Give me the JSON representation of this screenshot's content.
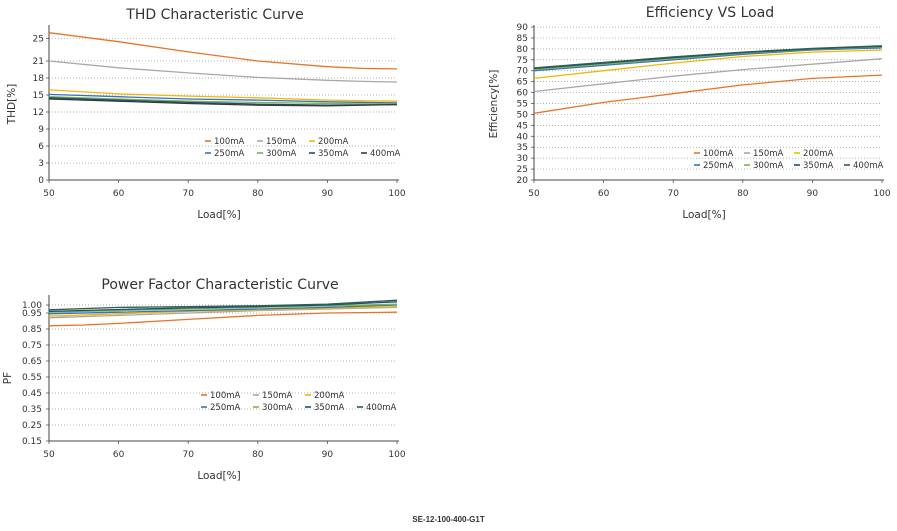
{
  "chart_data": [
    {
      "type": "line",
      "title": "THD Characteristic Curve",
      "xlabel": "Load[%]",
      "ylabel": "THD[%]",
      "xlim": [
        50,
        100
      ],
      "ylim": [
        0,
        27
      ],
      "x_ticks": [
        50,
        60,
        70,
        80,
        90,
        100
      ],
      "y_ticks": [
        0,
        3,
        6,
        9,
        12,
        15,
        18,
        21,
        25
      ],
      "grid": "dotted horizontal",
      "legend_position": "bottom-right",
      "series": [
        {
          "name": "100mA",
          "color": "#e8742a",
          "x": [
            50,
            60,
            70,
            80,
            90,
            95,
            100
          ],
          "y": [
            26,
            24.4,
            22.6,
            21.0,
            20.0,
            19.7,
            19.6
          ]
        },
        {
          "name": "150mA",
          "color": "#a8a8a8",
          "x": [
            50,
            60,
            70,
            80,
            90,
            95,
            100
          ],
          "y": [
            21.0,
            19.8,
            18.9,
            18.1,
            17.6,
            17.4,
            17.3
          ]
        },
        {
          "name": "200mA",
          "color": "#f2b705",
          "x": [
            50,
            60,
            70,
            80,
            90,
            100
          ],
          "y": [
            15.9,
            15.2,
            14.8,
            14.5,
            14.1,
            13.9
          ]
        },
        {
          "name": "250mA",
          "color": "#3a6fc4",
          "x": [
            50,
            60,
            70,
            80,
            90,
            100
          ],
          "y": [
            15.1,
            14.7,
            14.3,
            14.1,
            13.8,
            13.6
          ]
        },
        {
          "name": "300mA",
          "color": "#7ab648",
          "x": [
            50,
            60,
            70,
            80,
            90,
            100
          ],
          "y": [
            14.7,
            14.3,
            13.9,
            13.7,
            13.5,
            13.4
          ]
        },
        {
          "name": "350mA",
          "color": "#1f4e79",
          "x": [
            50,
            60,
            70,
            80,
            90,
            100
          ],
          "y": [
            14.5,
            14.1,
            13.7,
            13.4,
            13.2,
            13.3
          ]
        },
        {
          "name": "400mA",
          "color": "#3a3a3a",
          "x": [
            50,
            60,
            70,
            80,
            90,
            100
          ],
          "y": [
            14.3,
            13.9,
            13.5,
            13.2,
            13.1,
            13.3
          ]
        }
      ]
    },
    {
      "type": "line",
      "title": "Efficiency VS Load",
      "xlabel": "Load[%]",
      "ylabel": "Efficiency[%]",
      "xlim": [
        50,
        100
      ],
      "ylim": [
        20,
        90
      ],
      "x_ticks": [
        50,
        60,
        70,
        80,
        90,
        100
      ],
      "y_ticks": [
        20,
        25,
        30,
        35,
        40,
        45,
        50,
        55,
        60,
        65,
        70,
        75,
        80,
        85,
        90
      ],
      "grid": "dotted horizontal",
      "legend_position": "bottom-right",
      "series": [
        {
          "name": "100mA",
          "color": "#e8742a",
          "x": [
            50,
            60,
            70,
            80,
            90,
            100
          ],
          "y": [
            50.5,
            55.5,
            59.5,
            63.5,
            66.5,
            68.0
          ]
        },
        {
          "name": "150mA",
          "color": "#a8a8a8",
          "x": [
            50,
            60,
            70,
            80,
            90,
            100
          ],
          "y": [
            60.5,
            64.0,
            67.5,
            70.5,
            73.0,
            75.5
          ]
        },
        {
          "name": "200mA",
          "color": "#f2b705",
          "x": [
            50,
            60,
            70,
            80,
            90,
            100
          ],
          "y": [
            66.5,
            70.0,
            73.5,
            76.5,
            78.5,
            79.5
          ]
        },
        {
          "name": "250mA",
          "color": "#3a6fc4",
          "x": [
            50,
            60,
            70,
            80,
            90,
            100
          ],
          "y": [
            70.0,
            72.5,
            75.0,
            77.5,
            79.5,
            80.5
          ]
        },
        {
          "name": "300mA",
          "color": "#7ab648",
          "x": [
            50,
            60,
            70,
            80,
            90,
            100
          ],
          "y": [
            70.5,
            73.0,
            75.5,
            78.0,
            79.8,
            81.0
          ]
        },
        {
          "name": "350mA",
          "color": "#1f4e79",
          "x": [
            50,
            60,
            70,
            80,
            90,
            100
          ],
          "y": [
            71.0,
            73.5,
            76.0,
            78.3,
            80.0,
            81.2
          ]
        },
        {
          "name": "400mA",
          "color": "#2e5e4e",
          "x": [
            50,
            60,
            70,
            80,
            90,
            100
          ],
          "y": [
            71.3,
            73.8,
            76.3,
            78.5,
            80.2,
            81.4
          ]
        }
      ]
    },
    {
      "type": "line",
      "title": "Power Factor Characteristic Curve",
      "xlabel": "Load[%]",
      "ylabel": "PF",
      "xlim": [
        50,
        100
      ],
      "ylim": [
        0.15,
        1.05
      ],
      "x_ticks": [
        50,
        60,
        70,
        80,
        90,
        100
      ],
      "y_ticks": [
        0.15,
        0.25,
        0.35,
        0.45,
        0.55,
        0.65,
        0.75,
        0.85,
        0.95,
        1.0
      ],
      "grid": "dotted horizontal",
      "legend_position": "bottom-right",
      "series": [
        {
          "name": "100mA",
          "color": "#e8742a",
          "x": [
            50,
            55,
            60,
            70,
            80,
            90,
            100
          ],
          "y": [
            0.87,
            0.875,
            0.885,
            0.91,
            0.935,
            0.95,
            0.955
          ]
        },
        {
          "name": "150mA",
          "color": "#a8a8a8",
          "x": [
            50,
            60,
            70,
            80,
            90,
            100
          ],
          "y": [
            0.92,
            0.935,
            0.95,
            0.965,
            0.975,
            0.985
          ]
        },
        {
          "name": "200mA",
          "color": "#f2b705",
          "x": [
            50,
            60,
            70,
            80,
            90,
            100
          ],
          "y": [
            0.93,
            0.945,
            0.96,
            0.97,
            0.98,
            0.99
          ]
        },
        {
          "name": "250mA",
          "color": "#3a6fc4",
          "x": [
            50,
            60,
            70,
            80,
            90,
            100
          ],
          "y": [
            0.945,
            0.955,
            0.965,
            0.975,
            0.985,
            1.0
          ]
        },
        {
          "name": "300mA",
          "color": "#7ab648",
          "x": [
            50,
            60,
            70,
            80,
            90,
            100
          ],
          "y": [
            0.955,
            0.965,
            0.975,
            0.985,
            0.995,
            1.005
          ]
        },
        {
          "name": "350mA",
          "color": "#1f4e79",
          "x": [
            50,
            60,
            70,
            80,
            90,
            100
          ],
          "y": [
            0.96,
            0.972,
            0.982,
            0.99,
            1.0,
            1.02
          ]
        },
        {
          "name": "400mA",
          "color": "#2e5e4e",
          "x": [
            50,
            60,
            70,
            80,
            90,
            100
          ],
          "y": [
            0.97,
            0.985,
            0.99,
            0.995,
            1.005,
            1.03
          ]
        }
      ]
    }
  ],
  "footer": {
    "model": "SE-12-100-400-G1T"
  }
}
